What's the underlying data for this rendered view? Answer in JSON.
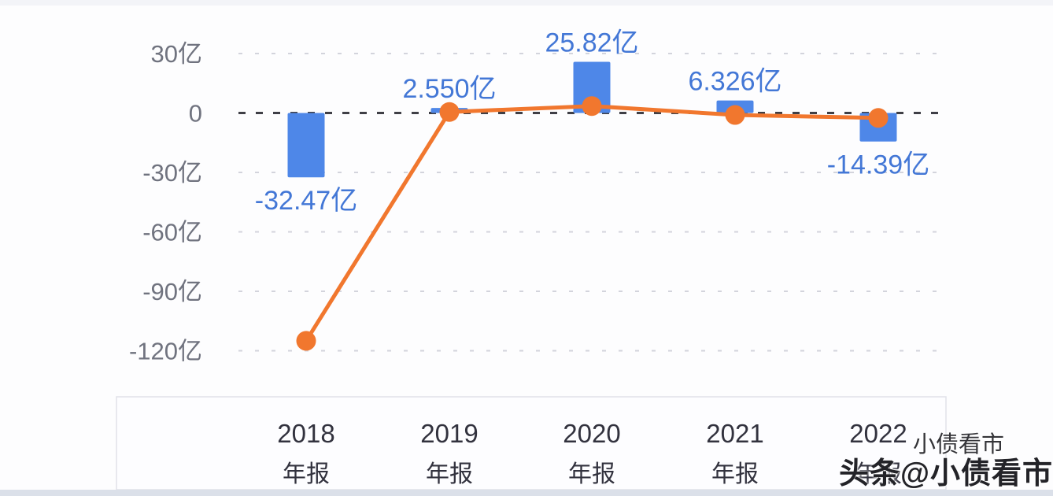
{
  "colors": {
    "bar": "#4e87e8",
    "bar_label": "#4377d6",
    "line": "#f1772e",
    "grid_light": "#d3d4dc",
    "grid_zero": "#3f3f46",
    "axis_text": "#70737f",
    "x_text": "#32323e",
    "x_box_fill": "#fdfdff",
    "x_box_border": "#e1e2e8",
    "bottom_strip": "#dbe0e9"
  },
  "watermark": {
    "line1": "小债看市",
    "line2": "头条@小债看市"
  },
  "chart_data": {
    "type": "bar+line",
    "unit": "亿",
    "categories": [
      {
        "year": "2018",
        "period": "年报"
      },
      {
        "year": "2019",
        "period": "年报"
      },
      {
        "year": "2020",
        "period": "年报"
      },
      {
        "year": "2021",
        "period": "年报"
      },
      {
        "year": "2022",
        "period": "年报"
      }
    ],
    "bar_series": {
      "values": [
        -32.47,
        2.55,
        25.82,
        6.326,
        -14.39
      ],
      "data_labels": [
        "-32.47亿",
        "2.550亿",
        "25.82亿",
        "6.326亿",
        "-14.39亿"
      ]
    },
    "line_series": {
      "values": [
        -115,
        0.5,
        3.5,
        -1,
        -2.5
      ]
    },
    "y_axis": {
      "ticks": [
        {
          "value": 30,
          "label": "30亿"
        },
        {
          "value": 0,
          "label": "0"
        },
        {
          "value": -30,
          "label": "-30亿"
        },
        {
          "value": -60,
          "label": "-60亿"
        },
        {
          "value": -90,
          "label": "-90亿"
        },
        {
          "value": -120,
          "label": "-120亿"
        }
      ],
      "grid": "dashed"
    }
  }
}
